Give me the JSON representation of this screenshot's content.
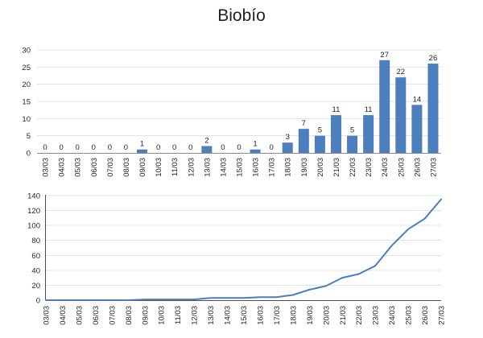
{
  "title": "Biobío",
  "colors": {
    "bar_fill": "#4D7EBD",
    "line_stroke": "#4A7EBC",
    "gridline": "#E3E3E3",
    "daily_axis_line": "#8C8C8C",
    "cumulative_axis_line": "#4D4D4D",
    "label_text": "#262626"
  },
  "chart_data": [
    {
      "type": "bar",
      "name": "daily-cases-bar-chart",
      "title": "Biobío",
      "categories": [
        "03/03",
        "04/03",
        "05/03",
        "06/03",
        "07/03",
        "08/03",
        "09/03",
        "10/03",
        "11/03",
        "12/03",
        "13/03",
        "14/03",
        "15/03",
        "16/03",
        "17/03",
        "18/03",
        "19/03",
        "20/03",
        "21/03",
        "22/03",
        "23/03",
        "24/03",
        "25/03",
        "26/03",
        "27/03"
      ],
      "values": [
        0,
        0,
        0,
        0,
        0,
        0,
        1,
        0,
        0,
        0,
        2,
        0,
        0,
        1,
        0,
        3,
        7,
        5,
        11,
        5,
        11,
        27,
        22,
        14,
        26
      ],
      "data_labels": [
        0,
        0,
        0,
        0,
        0,
        0,
        1,
        0,
        0,
        0,
        2,
        0,
        0,
        1,
        0,
        3,
        7,
        5,
        11,
        5,
        11,
        27,
        22,
        14,
        26
      ],
      "xlabel": "",
      "ylabel": "",
      "ylim": [
        0,
        30
      ],
      "yticks": [
        0,
        5,
        10,
        15,
        20,
        25,
        30
      ],
      "grid": true,
      "legend": "none"
    },
    {
      "type": "line",
      "name": "cumulative-cases-line-chart",
      "categories": [
        "03/03",
        "04/03",
        "05/03",
        "06/03",
        "07/03",
        "08/03",
        "09/03",
        "10/03",
        "11/03",
        "12/03",
        "13/03",
        "14/03",
        "15/03",
        "16/03",
        "17/03",
        "18/03",
        "19/03",
        "20/03",
        "21/03",
        "22/03",
        "23/03",
        "24/03",
        "25/03",
        "26/03",
        "27/03"
      ],
      "values": [
        0,
        0,
        0,
        0,
        0,
        0,
        1,
        1,
        1,
        1,
        3,
        3,
        3,
        4,
        4,
        7,
        14,
        19,
        30,
        35,
        46,
        73,
        95,
        109,
        135
      ],
      "xlabel": "",
      "ylabel": "",
      "ylim": [
        0,
        140
      ],
      "yticks": [
        0,
        20,
        40,
        60,
        80,
        100,
        120,
        140
      ],
      "grid": true,
      "legend": "none"
    }
  ]
}
